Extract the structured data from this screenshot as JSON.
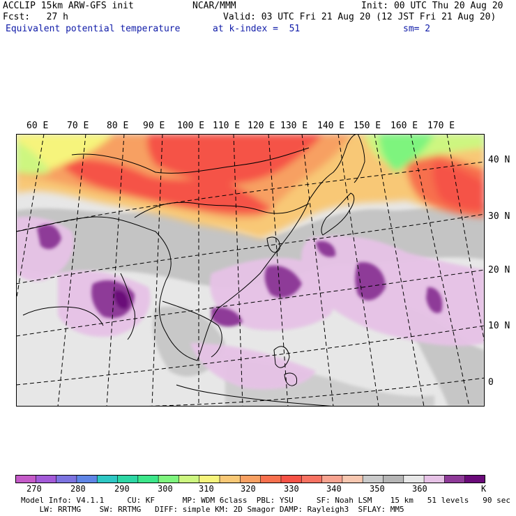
{
  "header": {
    "line1_left": "ACCLIP 15km ARW-GFS init",
    "line1_center": "NCAR/MMM",
    "line1_right": "Init: 00 UTC Thu 20 Aug 20",
    "line2_left": "Fcst:   27 h",
    "line2_right": "Valid: 03 UTC Fri 21 Aug 20 (12 JST Fri 21 Aug 20)",
    "line3_left": "Equivalent potential temperature",
    "line3_center": "at k-index =  51",
    "line3_right": "sm= 2"
  },
  "map": {
    "lon_labels": [
      "60 E",
      "70 E",
      "80 E",
      "90 E",
      "100 E",
      "110 E",
      "120 E",
      "130 E",
      "140 E",
      "150 E",
      "160 E",
      "170 E"
    ],
    "lat_labels": [
      "40 N",
      "30 N",
      "20 N",
      "10 N",
      "0"
    ]
  },
  "colorbar": {
    "colors": [
      "#c45ac8",
      "#a35ad8",
      "#7c73e0",
      "#5f85e6",
      "#2ec7c4",
      "#2dd6a4",
      "#3ce68a",
      "#7ef47e",
      "#cdf680",
      "#f6f47c",
      "#f8c876",
      "#f7a062",
      "#f7704e",
      "#f55246",
      "#f77262",
      "#f7a390",
      "#f7c7b0",
      "#cacaca",
      "#b5b5b5",
      "#e7e7e7",
      "#e6c2e6",
      "#8e3a98",
      "#6a0a79"
    ],
    "labels": [
      "270",
      "280",
      "290",
      "300",
      "310",
      "320",
      "330",
      "340",
      "350",
      "360"
    ],
    "unit": "K"
  },
  "model_info": {
    "line1": "Model Info: V4.1.1     CU: KF      MP: WDM 6class  PBL: YSU     SF: Noah LSM    15 km   51 levels   90 sec",
    "line2": "    LW: RRTMG    SW: RRTMG   DIFF: simple KM: 2D Smagor DAMP: Rayleigh3  SFLAY: MM5"
  }
}
